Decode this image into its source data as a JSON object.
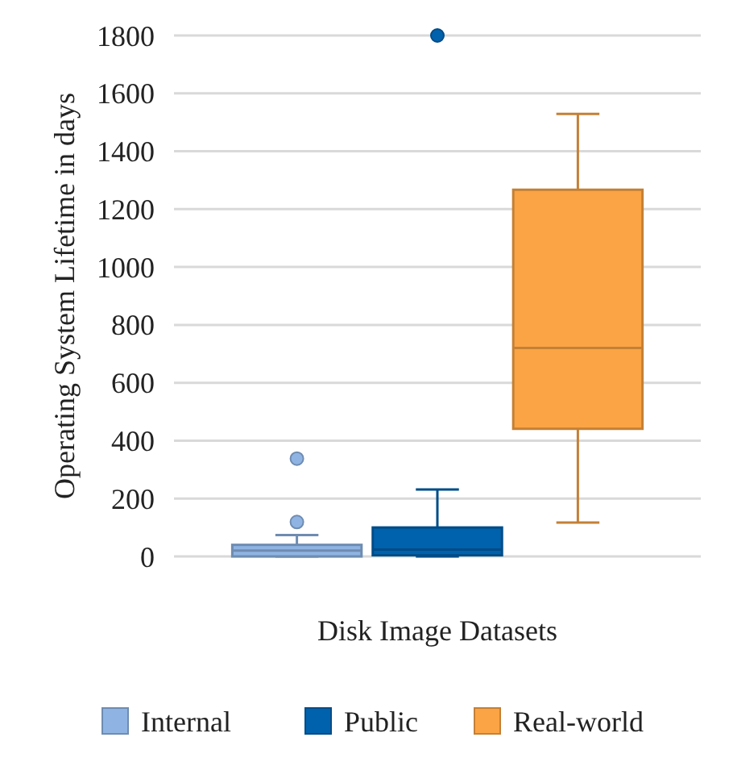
{
  "chart_data": {
    "type": "box",
    "ylabel": "Operating System Lifetime in days",
    "xlabel": "Disk Image Datasets",
    "categories": [
      null
    ],
    "ylim": [
      0,
      1800
    ],
    "yticks": [
      0,
      200,
      400,
      600,
      800,
      1000,
      1200,
      1400,
      1600,
      1800
    ],
    "grid": "y",
    "legend": "bottom",
    "series": [
      {
        "name": "Internal",
        "color": "#8fb4e3",
        "boxes": [
          {
            "low": 0,
            "q1": 0,
            "median": 20,
            "q3": 40,
            "high": 74,
            "outliers": [
              119,
              338
            ]
          }
        ]
      },
      {
        "name": "Public",
        "color": "#0062ad",
        "boxes": [
          {
            "low": 0,
            "q1": 4,
            "median": 24,
            "q3": 100,
            "high": 231,
            "outliers": [
              1800
            ]
          }
        ]
      },
      {
        "name": "Real-world",
        "color": "#fba445",
        "boxes": [
          {
            "low": 117,
            "q1": 441,
            "median": 720,
            "q3": 1267,
            "high": 1529
          }
        ]
      }
    ]
  }
}
